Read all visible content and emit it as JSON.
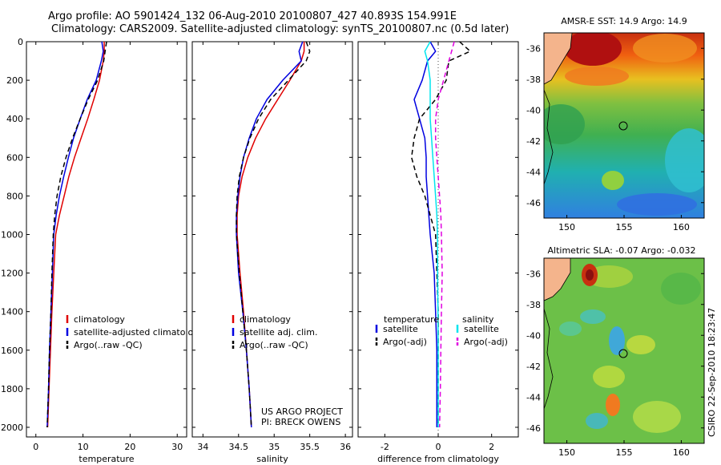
{
  "header": {
    "title_line1": "Argo profile: AO 5901424_132 06-Aug-2010 20100807_427 40.893S 154.991E",
    "title_line2": "Climatology: CARS2009. Satellite-adjusted climatology: synTS_20100807.nc (0.5d later)"
  },
  "colors": {
    "climatology": "#e00000",
    "satellite": "#0000e0",
    "argo": "#000000",
    "salinity_satellite": "#00e5ee",
    "salinity_argo": "#e000e0",
    "land": "#f4b48c"
  },
  "chart_data": [
    {
      "type": "line",
      "id": "temperature",
      "xlabel": "temperature",
      "xlim": [
        -2,
        32
      ],
      "ylim": [
        2050,
        0
      ],
      "xticks": [
        0,
        10,
        20,
        30
      ],
      "yticks": [
        0,
        200,
        400,
        600,
        800,
        1000,
        1200,
        1400,
        1600,
        1800,
        2000
      ],
      "legend": [
        "climatology",
        "satellite-adjusted climatology",
        "Argo(..raw -QC)"
      ],
      "legend_position": "center-right",
      "series": [
        {
          "name": "climatology",
          "color": "#e00000",
          "dash": "",
          "x": [
            14.5,
            14.5,
            14.3,
            13.5,
            12.3,
            11.0,
            9.6,
            8.2,
            7.0,
            6.0,
            5.0,
            4.2,
            3.8,
            3.4,
            3.1,
            2.8,
            2.5
          ],
          "y": [
            0,
            50,
            100,
            200,
            300,
            400,
            500,
            600,
            700,
            800,
            900,
            1000,
            1200,
            1400,
            1600,
            1800,
            2000
          ]
        },
        {
          "name": "satellite-adjusted climatology",
          "color": "#0000e0",
          "dash": "",
          "x": [
            14.0,
            14.3,
            13.9,
            12.8,
            10.9,
            9.4,
            8.0,
            6.9,
            5.9,
            5.0,
            4.3,
            3.8,
            3.5,
            3.2,
            2.9,
            2.7,
            2.4
          ],
          "y": [
            0,
            50,
            100,
            200,
            300,
            400,
            500,
            600,
            700,
            800,
            900,
            1000,
            1200,
            1400,
            1600,
            1800,
            2000
          ]
        },
        {
          "name": "Argo(..raw -QC)",
          "color": "#000000",
          "dash": "6,4",
          "x": [
            15.0,
            14.7,
            14.4,
            13.1,
            11.1,
            9.4,
            7.8,
            6.4,
            5.3,
            4.5,
            4.0,
            3.7,
            3.4,
            3.2,
            2.9,
            2.7,
            2.4
          ],
          "y": [
            0,
            50,
            100,
            200,
            300,
            400,
            500,
            600,
            700,
            800,
            900,
            1000,
            1200,
            1400,
            1600,
            1800,
            2000
          ]
        }
      ]
    },
    {
      "type": "line",
      "id": "salinity",
      "xlabel": "salinity",
      "xlim": [
        33.85,
        36.1
      ],
      "ylim": [
        2050,
        0
      ],
      "xticks": [
        34,
        34.5,
        35,
        35.5,
        36
      ],
      "yticks": [
        0,
        200,
        400,
        600,
        800,
        1000,
        1200,
        1400,
        1600,
        1800,
        2000
      ],
      "legend": [
        "climatology",
        "satellite adj. clim.",
        "Argo(..raw -QC)"
      ],
      "legend_position": "center-right",
      "annotation": [
        "US ARGO PROJECT",
        "PI: BRECK OWENS"
      ],
      "series": [
        {
          "name": "climatology",
          "color": "#e00000",
          "dash": "",
          "x": [
            35.42,
            35.42,
            35.38,
            35.22,
            35.05,
            34.88,
            34.74,
            34.63,
            34.55,
            34.5,
            34.48,
            34.48,
            34.52,
            34.57,
            34.61,
            34.65,
            34.68
          ],
          "y": [
            0,
            50,
            100,
            200,
            300,
            400,
            500,
            600,
            700,
            800,
            900,
            1000,
            1200,
            1400,
            1600,
            1800,
            2000
          ]
        },
        {
          "name": "satellite adj. clim.",
          "color": "#0000e0",
          "dash": "",
          "x": [
            35.4,
            35.35,
            35.38,
            35.12,
            34.9,
            34.75,
            34.65,
            34.57,
            34.52,
            34.49,
            34.47,
            34.47,
            34.5,
            34.56,
            34.61,
            34.65,
            34.68
          ],
          "y": [
            0,
            50,
            100,
            200,
            300,
            400,
            500,
            600,
            700,
            800,
            900,
            1000,
            1200,
            1400,
            1600,
            1800,
            2000
          ]
        },
        {
          "name": "Argo(..raw -QC)",
          "color": "#000000",
          "dash": "6,4",
          "x": [
            35.45,
            35.5,
            35.45,
            35.2,
            34.95,
            34.78,
            34.66,
            34.57,
            34.51,
            34.48,
            34.47,
            34.47,
            34.51,
            34.56,
            34.61,
            34.65,
            34.68
          ],
          "y": [
            0,
            50,
            100,
            200,
            300,
            400,
            500,
            600,
            700,
            800,
            900,
            1000,
            1200,
            1400,
            1600,
            1800,
            2000
          ]
        }
      ]
    },
    {
      "type": "line",
      "id": "difference",
      "xlabel": "difference from climatology",
      "xlim": [
        -3,
        3
      ],
      "ylim": [
        2050,
        0
      ],
      "xticks": [
        -2,
        0,
        2
      ],
      "yticks": [
        0,
        200,
        400,
        600,
        800,
        1000,
        1200,
        1400,
        1600,
        1800,
        2000
      ],
      "zero_line": true,
      "legend_headers": [
        "temperature",
        "salinity"
      ],
      "legend": [
        "satellite",
        "Argo(-adj)",
        "satellite",
        "Argo(-adj)"
      ],
      "legend_position": "center",
      "series": [
        {
          "name": "satellite",
          "group": "temperature",
          "color": "#0000e0",
          "dash": "",
          "x": [
            -0.3,
            -0.1,
            -0.4,
            -0.6,
            -0.9,
            -0.7,
            -0.5,
            -0.45,
            -0.45,
            -0.4,
            -0.35,
            -0.3,
            -0.15,
            -0.1,
            -0.05,
            -0.05,
            -0.05
          ],
          "y": [
            0,
            50,
            100,
            200,
            300,
            400,
            500,
            600,
            700,
            800,
            900,
            1000,
            1200,
            1400,
            1600,
            1800,
            2000
          ]
        },
        {
          "name": "Argo(-adj)",
          "group": "temperature",
          "color": "#000000",
          "dash": "6,4",
          "x": [
            0.8,
            1.2,
            0.4,
            0.3,
            -0.1,
            -0.7,
            -0.9,
            -1.0,
            -0.8,
            -0.5,
            -0.3,
            -0.1,
            -0.05,
            0.0,
            0.0,
            0.0,
            0.0
          ],
          "y": [
            0,
            50,
            100,
            200,
            300,
            400,
            500,
            600,
            700,
            800,
            900,
            1000,
            1200,
            1400,
            1600,
            1800,
            2000
          ]
        },
        {
          "name": "satellite",
          "group": "salinity",
          "color": "#00e5ee",
          "dash": "",
          "x": [
            -0.3,
            -0.5,
            -0.4,
            -0.3,
            -0.3,
            -0.3,
            -0.25,
            -0.2,
            -0.15,
            -0.1,
            -0.05,
            -0.03,
            -0.02,
            -0.01,
            0.0,
            0.0,
            0.0
          ],
          "y": [
            0,
            50,
            100,
            200,
            300,
            400,
            500,
            600,
            700,
            800,
            900,
            1000,
            1200,
            1400,
            1600,
            1800,
            2000
          ]
        },
        {
          "name": "Argo(-adj)",
          "group": "salinity",
          "color": "#e000e0",
          "dash": "6,4",
          "x": [
            0.6,
            0.5,
            0.4,
            0.2,
            0.0,
            -0.1,
            -0.1,
            -0.05,
            0.0,
            0.05,
            0.1,
            0.12,
            0.15,
            0.12,
            0.1,
            0.08,
            0.05
          ],
          "y": [
            0,
            50,
            100,
            200,
            300,
            400,
            500,
            600,
            700,
            800,
            900,
            1000,
            1200,
            1400,
            1600,
            1800,
            2000
          ]
        }
      ]
    },
    {
      "type": "heatmap",
      "id": "sst_map",
      "title": "AMSR-E SST: 14.9  Argo: 14.9",
      "xlim": [
        148,
        162
      ],
      "ylim": [
        -47,
        -35
      ],
      "xticks": [
        150,
        155,
        160
      ],
      "yticks": [
        -36,
        -38,
        -40,
        -42,
        -44,
        -46
      ],
      "marker": {
        "lon": 154.991,
        "lat": -40.893
      }
    },
    {
      "type": "heatmap",
      "id": "sla_map",
      "title": "Altimetric SLA: -0.07  Argo: -0.032",
      "xlim": [
        148,
        162
      ],
      "ylim": [
        -47,
        -35
      ],
      "xticks": [
        150,
        155,
        160
      ],
      "yticks": [
        -36,
        -38,
        -40,
        -42,
        -44,
        -46
      ],
      "marker": {
        "lon": 154.991,
        "lat": -40.893
      }
    }
  ],
  "footer": {
    "stamp": "CSIRO 22-Sep-2010 18:23:47"
  }
}
